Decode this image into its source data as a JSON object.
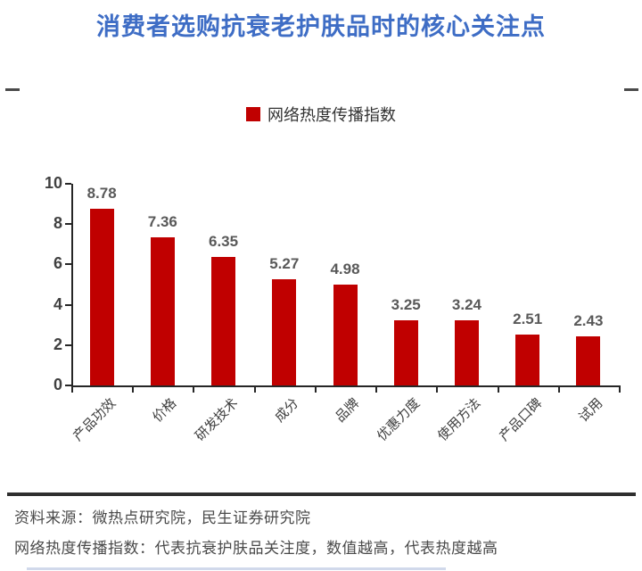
{
  "page": {
    "title": "消费者选购抗衰老护肤品时的核心关注点"
  },
  "legend": {
    "label": "网络热度传播指数"
  },
  "chart_data": {
    "type": "bar",
    "title": "消费者选购抗衰老护肤品时的核心关注点",
    "legend_entries": [
      "网络热度传播指数"
    ],
    "legend_position": "top",
    "categories": [
      "产品功效",
      "价格",
      "研发技术",
      "成分",
      "品牌",
      "优惠力度",
      "使用方法",
      "产品口碑",
      "试用"
    ],
    "values": [
      8.78,
      7.36,
      6.35,
      5.27,
      4.98,
      3.25,
      3.24,
      2.51,
      2.43
    ],
    "value_labels": [
      "8.78",
      "7.36",
      "6.35",
      "5.27",
      "4.98",
      "3.25",
      "3.24",
      "2.51",
      "2.43"
    ],
    "xlabel": "",
    "ylabel": "",
    "ylim": [
      0,
      10
    ],
    "y_ticks": [
      0,
      2,
      4,
      6,
      8,
      10
    ],
    "grid": false,
    "bar_color": "#C00000"
  },
  "footer": {
    "source": "资料来源：微热点研究院，民生证券研究院",
    "note": "网络热度传播指数：代表抗衰护肤品关注度，数值越高，代表热度越高"
  },
  "colors": {
    "title": "#3E6DC5",
    "bar": "#C00000",
    "axis": "#262626",
    "value_label": "#595959",
    "tick_label": "#404040",
    "footer_text": "#4A4A4A",
    "footer_rule": "#2F2F2F"
  }
}
